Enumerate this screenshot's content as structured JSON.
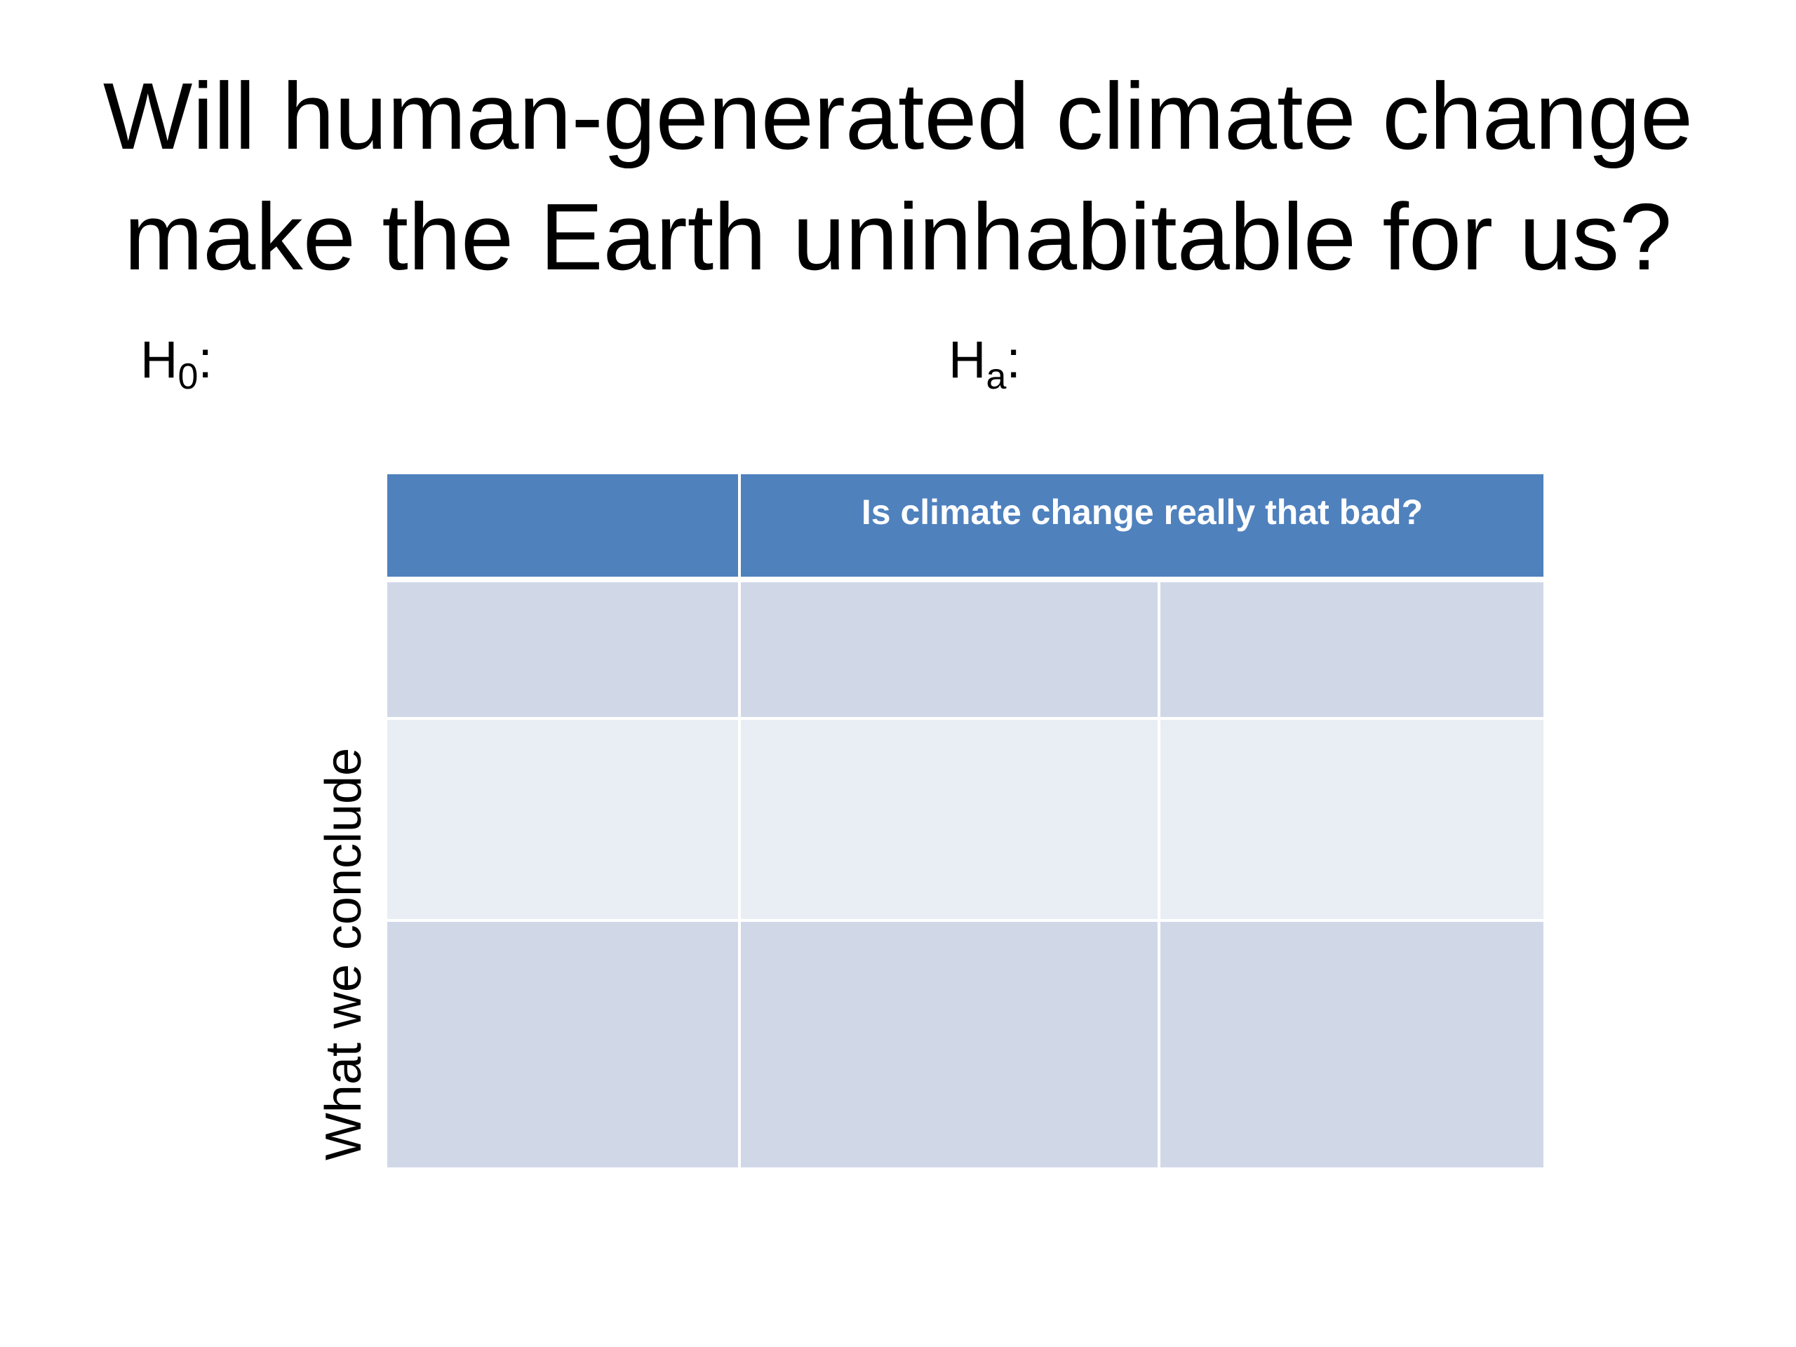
{
  "slide": {
    "title_line1": "Will human-generated climate change",
    "title_line2": "make the Earth uninhabitable for us?"
  },
  "hypotheses": {
    "null_main": "H",
    "null_sub": "0",
    "null_colon": ":",
    "alt_main": "H",
    "alt_sub": "a",
    "alt_colon": ":"
  },
  "table": {
    "header_label": "Is climate change really that bad?",
    "row_axis_label": "What we conclude",
    "colors": {
      "header": "#4f81bd",
      "band_dark": "#d0d8e8",
      "band_light": "#e9edf4"
    }
  }
}
